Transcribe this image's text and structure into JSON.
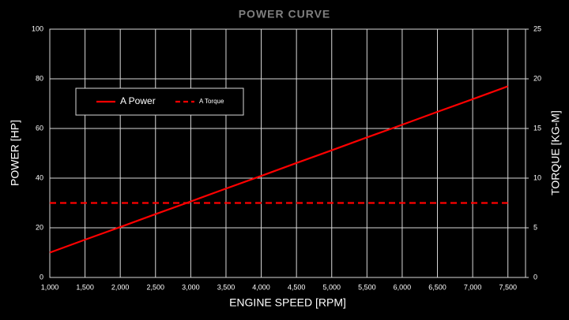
{
  "chart_data": {
    "type": "line",
    "title": "POWER CURVE",
    "x_label": "ENGINE SPEED [RPM]",
    "y_label": "POWER [HP]",
    "y2_label": "TORQUE [KG-M]",
    "x": [
      1000,
      1500,
      2000,
      2500,
      3000,
      3500,
      4000,
      4500,
      5000,
      5500,
      6000,
      6500,
      7000,
      7500
    ],
    "series": [
      {
        "name": "A Power",
        "color": "#ff0000",
        "dash": "solid",
        "axis": "y",
        "values": [
          10,
          15.2,
          20.3,
          25.5,
          30.6,
          35.8,
          40.9,
          46.1,
          51.2,
          56.4,
          61.5,
          66.7,
          71.8,
          77
        ]
      },
      {
        "name": "A Torque",
        "color": "#ff0000",
        "dash": "dashed",
        "axis": "y2",
        "values": [
          7.5,
          7.5,
          7.5,
          7.5,
          7.5,
          7.5,
          7.5,
          7.5,
          7.5,
          7.5,
          7.5,
          7.5,
          7.5,
          7.5
        ]
      }
    ],
    "xlim": [
      1000,
      7750
    ],
    "xticks": [
      {
        "value": 1000,
        "label": "1,000"
      },
      {
        "value": 1500,
        "label": "1,500"
      },
      {
        "value": 2000,
        "label": "2,000"
      },
      {
        "value": 2500,
        "label": "2,500"
      },
      {
        "value": 3000,
        "label": "3,000"
      },
      {
        "value": 3500,
        "label": "3,500"
      },
      {
        "value": 4000,
        "label": "4,000"
      },
      {
        "value": 4500,
        "label": "4,500"
      },
      {
        "value": 5000,
        "label": "5,000"
      },
      {
        "value": 5500,
        "label": "5,500"
      },
      {
        "value": 6000,
        "label": "6,000"
      },
      {
        "value": 6500,
        "label": "6,500"
      },
      {
        "value": 7000,
        "label": "7,000"
      },
      {
        "value": 7500,
        "label": "7,500"
      }
    ],
    "ylim": [
      0,
      100
    ],
    "yticks": [
      0,
      20,
      40,
      60,
      80,
      100
    ],
    "y2lim": [
      0,
      25
    ],
    "y2ticks": [
      0,
      5,
      10,
      15,
      20,
      25
    ],
    "grid": true
  }
}
